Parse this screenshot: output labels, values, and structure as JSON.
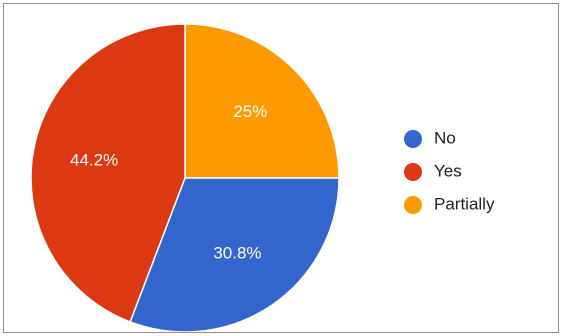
{
  "chart_data": {
    "type": "pie",
    "title": "",
    "slices": [
      {
        "label": "Partially",
        "value": 25,
        "display": "25%",
        "color": "#FF9900"
      },
      {
        "label": "No",
        "value": 30.8,
        "display": "30.8%",
        "color": "#3366CC"
      },
      {
        "label": "Yes",
        "value": 44.2,
        "display": "44.2%",
        "color": "#DC3912"
      }
    ],
    "legend": {
      "position": "right",
      "entries": [
        {
          "label": "No",
          "color": "#3366CC"
        },
        {
          "label": "Yes",
          "color": "#DC3912"
        },
        {
          "label": "Partially",
          "color": "#FF9900"
        }
      ]
    }
  }
}
